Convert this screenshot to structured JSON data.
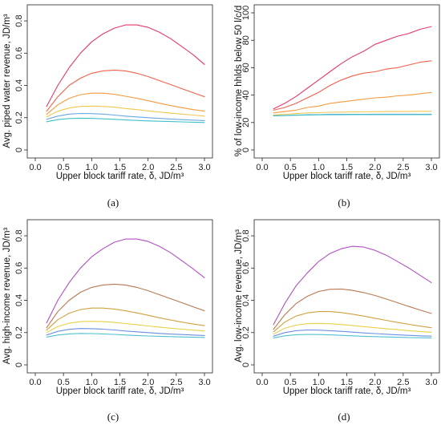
{
  "chart_data": [
    {
      "type": "line",
      "panel_label": "(a)",
      "xlabel": "Upper block tariff rate, δ, JD/m³",
      "ylabel": "Avg. piped water revenue, JD/m³",
      "xlim": [
        0,
        3
      ],
      "ylim": [
        0,
        0.85
      ],
      "xticks": [
        "0.0",
        "0.5",
        "1.0",
        "1.5",
        "2.0",
        "2.5",
        "3.0"
      ],
      "yticks": [
        "0",
        "0.2",
        "0.4",
        "0.6",
        "0.8"
      ],
      "grid": false,
      "x": [
        0.2,
        0.4,
        0.6,
        0.8,
        1.0,
        1.2,
        1.4,
        1.6,
        1.8,
        2.0,
        2.2,
        2.4,
        2.6,
        2.8,
        3.0
      ],
      "series": [
        {
          "color": "#e8396e",
          "values": [
            0.27,
            0.4,
            0.51,
            0.6,
            0.67,
            0.72,
            0.755,
            0.775,
            0.775,
            0.76,
            0.73,
            0.69,
            0.64,
            0.59,
            0.53
          ]
        },
        {
          "color": "#f0614a",
          "values": [
            0.24,
            0.33,
            0.4,
            0.445,
            0.475,
            0.49,
            0.495,
            0.49,
            0.475,
            0.455,
            0.43,
            0.405,
            0.38,
            0.355,
            0.33
          ]
        },
        {
          "color": "#f59a40",
          "values": [
            0.22,
            0.28,
            0.32,
            0.343,
            0.352,
            0.352,
            0.345,
            0.333,
            0.32,
            0.305,
            0.29,
            0.275,
            0.262,
            0.25,
            0.24
          ]
        },
        {
          "color": "#f0c850",
          "values": [
            0.205,
            0.24,
            0.26,
            0.27,
            0.272,
            0.27,
            0.265,
            0.257,
            0.25,
            0.242,
            0.235,
            0.228,
            0.222,
            0.216,
            0.21
          ]
        },
        {
          "color": "#6aa8e0",
          "values": [
            0.19,
            0.21,
            0.222,
            0.226,
            0.225,
            0.222,
            0.216,
            0.21,
            0.205,
            0.2,
            0.196,
            0.192,
            0.188,
            0.185,
            0.182
          ]
        },
        {
          "color": "#40c0c8",
          "values": [
            0.175,
            0.188,
            0.195,
            0.197,
            0.196,
            0.193,
            0.19,
            0.186,
            0.183,
            0.18,
            0.178,
            0.176,
            0.174,
            0.172,
            0.17
          ]
        }
      ]
    },
    {
      "type": "line",
      "panel_label": "(b)",
      "xlabel": "Upper block tariff rate, δ, JD/m³",
      "ylabel": "% of low-income hhlds below 50 l/c/d",
      "xlim": [
        0,
        3
      ],
      "ylim": [
        0,
        100
      ],
      "xticks": [
        "0.0",
        "0.5",
        "1.0",
        "1.5",
        "2.0",
        "2.5",
        "3.0"
      ],
      "yticks": [
        "0",
        "20",
        "40",
        "60",
        "80",
        "100"
      ],
      "grid": false,
      "x": [
        0.2,
        0.4,
        0.6,
        0.8,
        1.0,
        1.2,
        1.4,
        1.6,
        1.8,
        2.0,
        2.2,
        2.4,
        2.6,
        2.8,
        3.0
      ],
      "series": [
        {
          "color": "#e8396e",
          "values": [
            30,
            34,
            39,
            45,
            51,
            57,
            63,
            68,
            72,
            77,
            80,
            83,
            85,
            88,
            90
          ]
        },
        {
          "color": "#f0614a",
          "values": [
            29,
            31,
            34,
            38,
            42,
            47,
            51,
            54,
            56,
            57,
            59,
            60,
            62,
            64,
            65
          ]
        },
        {
          "color": "#f59a40",
          "values": [
            27,
            28,
            29,
            31,
            32,
            34,
            35,
            36,
            37,
            38,
            38.5,
            39.5,
            40,
            41,
            42
          ]
        },
        {
          "color": "#f0c850",
          "values": [
            25.5,
            26,
            26.5,
            27,
            27.2,
            27.5,
            27.6,
            27.7,
            27.8,
            27.9,
            28,
            28,
            28.1,
            28.2,
            28.2
          ]
        },
        {
          "color": "#6aa8e0",
          "values": [
            25,
            25.2,
            25.5,
            25.7,
            25.8,
            26,
            26,
            26,
            26,
            26.1,
            26.1,
            26.1,
            26.1,
            26.1,
            26.1
          ]
        },
        {
          "color": "#40c0c8",
          "values": [
            25,
            25.1,
            25.3,
            25.5,
            25.6,
            25.7,
            25.7,
            25.8,
            25.8,
            25.8,
            25.8,
            25.8,
            25.8,
            25.8,
            25.8
          ]
        }
      ]
    },
    {
      "type": "line",
      "panel_label": "(c)",
      "xlabel": "Upper block tariff rate, δ, JD/m³",
      "ylabel": "Avg. high-income revenue, JD/m³",
      "xlim": [
        0,
        3
      ],
      "ylim": [
        0,
        0.85
      ],
      "xticks": [
        "0.0",
        "0.5",
        "1.0",
        "1.5",
        "2.0",
        "2.5",
        "3.0"
      ],
      "yticks": [
        "0",
        "0.2",
        "0.4",
        "0.6",
        "0.8"
      ],
      "grid": false,
      "x": [
        0.2,
        0.4,
        0.6,
        0.8,
        1.0,
        1.2,
        1.4,
        1.6,
        1.8,
        2.0,
        2.2,
        2.4,
        2.6,
        2.8,
        3.0
      ],
      "series": [
        {
          "color": "#b050c0",
          "values": [
            0.26,
            0.4,
            0.51,
            0.6,
            0.67,
            0.72,
            0.76,
            0.78,
            0.78,
            0.765,
            0.735,
            0.695,
            0.645,
            0.595,
            0.54
          ]
        },
        {
          "color": "#b87850",
          "values": [
            0.23,
            0.33,
            0.4,
            0.45,
            0.48,
            0.495,
            0.5,
            0.495,
            0.48,
            0.46,
            0.435,
            0.41,
            0.385,
            0.36,
            0.335
          ]
        },
        {
          "color": "#d0a040",
          "values": [
            0.215,
            0.28,
            0.32,
            0.343,
            0.352,
            0.352,
            0.346,
            0.335,
            0.322,
            0.307,
            0.292,
            0.278,
            0.265,
            0.253,
            0.243
          ]
        },
        {
          "color": "#e8d048",
          "values": [
            0.2,
            0.238,
            0.258,
            0.268,
            0.27,
            0.268,
            0.263,
            0.256,
            0.249,
            0.241,
            0.234,
            0.227,
            0.221,
            0.215,
            0.21
          ]
        },
        {
          "color": "#6a90e0",
          "values": [
            0.185,
            0.208,
            0.22,
            0.225,
            0.224,
            0.221,
            0.216,
            0.21,
            0.205,
            0.2,
            0.195,
            0.191,
            0.188,
            0.185,
            0.182
          ]
        },
        {
          "color": "#50c0d0",
          "values": [
            0.172,
            0.185,
            0.192,
            0.195,
            0.194,
            0.192,
            0.189,
            0.185,
            0.182,
            0.179,
            0.177,
            0.175,
            0.173,
            0.171,
            0.17
          ]
        }
      ]
    },
    {
      "type": "line",
      "panel_label": "(d)",
      "xlabel": "Upper block tariff rate, δ, JD/m³",
      "ylabel": "Avg. low-income revenue, JD/m³",
      "xlim": [
        0,
        3
      ],
      "ylim": [
        0,
        0.85
      ],
      "xticks": [
        "0.0",
        "0.5",
        "1.0",
        "1.5",
        "2.0",
        "2.5",
        "3.0"
      ],
      "yticks": [
        "0",
        "0.2",
        "0.4",
        "0.6",
        "0.8"
      ],
      "grid": false,
      "x": [
        0.2,
        0.4,
        0.6,
        0.8,
        1.0,
        1.2,
        1.4,
        1.6,
        1.8,
        2.0,
        2.2,
        2.4,
        2.6,
        2.8,
        3.0
      ],
      "series": [
        {
          "color": "#b050c0",
          "values": [
            0.25,
            0.38,
            0.49,
            0.57,
            0.64,
            0.69,
            0.72,
            0.735,
            0.73,
            0.71,
            0.68,
            0.64,
            0.6,
            0.555,
            0.51
          ]
        },
        {
          "color": "#b87850",
          "values": [
            0.22,
            0.31,
            0.38,
            0.425,
            0.455,
            0.468,
            0.47,
            0.462,
            0.448,
            0.43,
            0.408,
            0.385,
            0.362,
            0.34,
            0.318
          ]
        },
        {
          "color": "#d0a040",
          "values": [
            0.205,
            0.265,
            0.302,
            0.322,
            0.33,
            0.33,
            0.324,
            0.314,
            0.302,
            0.289,
            0.276,
            0.263,
            0.251,
            0.24,
            0.23
          ]
        },
        {
          "color": "#e8d048",
          "values": [
            0.19,
            0.227,
            0.246,
            0.255,
            0.257,
            0.255,
            0.25,
            0.244,
            0.237,
            0.23,
            0.224,
            0.218,
            0.212,
            0.207,
            0.202
          ]
        },
        {
          "color": "#6a90e0",
          "values": [
            0.178,
            0.2,
            0.212,
            0.216,
            0.215,
            0.212,
            0.208,
            0.203,
            0.198,
            0.194,
            0.19,
            0.186,
            0.183,
            0.18,
            0.178
          ]
        },
        {
          "color": "#50c0d0",
          "values": [
            0.167,
            0.18,
            0.187,
            0.189,
            0.188,
            0.186,
            0.183,
            0.18,
            0.177,
            0.175,
            0.173,
            0.171,
            0.169,
            0.168,
            0.167
          ]
        }
      ]
    }
  ]
}
